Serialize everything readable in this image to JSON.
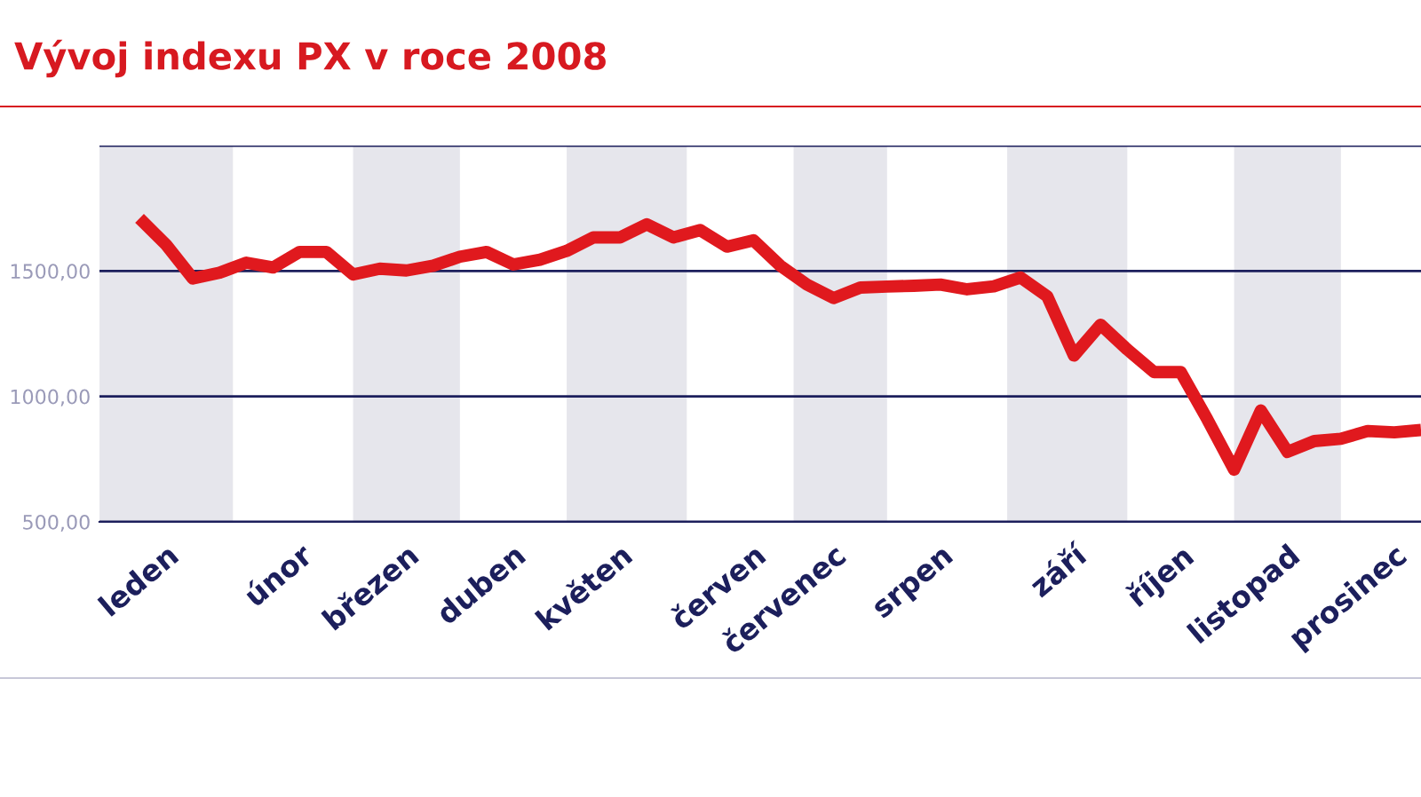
{
  "chart_data": {
    "type": "line",
    "title": "Vývoj indexu PX v roce 2008",
    "categories": [
      null,
      "leden",
      null,
      null,
      null,
      null,
      "únor",
      null,
      null,
      null,
      "březen",
      null,
      null,
      null,
      "duben",
      null,
      null,
      null,
      "květen",
      null,
      null,
      null,
      null,
      "červen",
      null,
      null,
      "červenec",
      null,
      null,
      null,
      "srpen",
      null,
      null,
      null,
      null,
      "září",
      null,
      null,
      null,
      "říjen",
      null,
      null,
      null,
      "listopad",
      null,
      null,
      null,
      "prosinec",
      null
    ],
    "series": [
      {
        "color": "#e0191e",
        "values": [
          1710,
          1604,
          1470,
          1493,
          1533,
          1514,
          1576,
          1576,
          1486,
          1509,
          1502,
          1521,
          1557,
          1576,
          1526,
          1545,
          1580,
          1634,
          1634,
          1686,
          1634,
          1663,
          1597,
          1622,
          1521,
          1446,
          1392,
          1434,
          1438,
          1441,
          1446,
          1427,
          1439,
          1474,
          1399,
          1163,
          1286,
          1187,
          1097,
          1097,
          908,
          708,
          944,
          779,
          822,
          831,
          862,
          857,
          866
        ]
      }
    ],
    "ylim": [
      500,
      2000
    ],
    "yticks": [
      {
        "value": 500,
        "label": "500,00"
      },
      {
        "value": 1000,
        "label": "1000,00"
      },
      {
        "value": 1500,
        "label": "1500,00"
      },
      {
        "value": 2000,
        "label": null
      }
    ],
    "grid": "y",
    "marker": "none",
    "line_style": "solid"
  }
}
